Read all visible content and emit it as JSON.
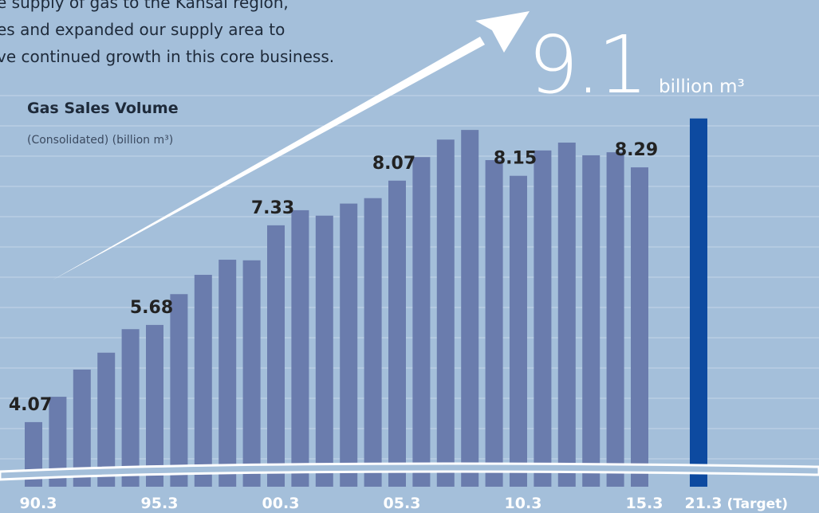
{
  "intro_text": [
    "e supply of gas to the Kansai region,",
    "es and expanded our supply area to",
    "ve continued growth in this core business."
  ],
  "chart_data": {
    "type": "bar",
    "title": "Gas Sales Volume",
    "subtitle": "(Consolidated) (billion m³)",
    "headline_value": "9.1",
    "headline_unit": "billion m³",
    "target_note": "(Target)",
    "categories": [
      "90.3",
      null,
      null,
      null,
      null,
      "95.3",
      null,
      null,
      null,
      null,
      "00.3",
      null,
      null,
      null,
      null,
      "05.3",
      null,
      null,
      null,
      null,
      "10.3",
      null,
      null,
      null,
      null,
      "15.3",
      "21.3"
    ],
    "values": [
      4.07,
      4.49,
      4.94,
      5.22,
      5.61,
      5.68,
      6.19,
      6.51,
      6.76,
      6.75,
      7.33,
      7.58,
      7.49,
      7.69,
      7.78,
      8.07,
      8.46,
      8.75,
      8.91,
      8.41,
      8.15,
      8.57,
      8.7,
      8.49,
      8.54,
      8.29,
      9.1
    ],
    "value_labels": [
      "4.07",
      null,
      null,
      null,
      null,
      "5.68",
      null,
      null,
      null,
      null,
      "7.33",
      null,
      null,
      null,
      null,
      "8.07",
      null,
      null,
      null,
      null,
      "8.15",
      null,
      null,
      null,
      null,
      "8.29",
      null
    ],
    "colors": [
      "#6a7cad",
      "#6a7cad",
      "#6a7cad",
      "#6a7cad",
      "#6a7cad",
      "#6a7cad",
      "#6a7cad",
      "#6a7cad",
      "#6a7cad",
      "#6a7cad",
      "#6a7cad",
      "#6a7cad",
      "#6a7cad",
      "#6a7cad",
      "#6a7cad",
      "#6a7cad",
      "#6a7cad",
      "#6a7cad",
      "#6a7cad",
      "#6a7cad",
      "#6a7cad",
      "#6a7cad",
      "#6a7cad",
      "#6a7cad",
      "#6a7cad",
      "#6a7cad",
      "#0d4aa0"
    ],
    "ylim": [
      3,
      9.5
    ],
    "axis_break": true
  }
}
